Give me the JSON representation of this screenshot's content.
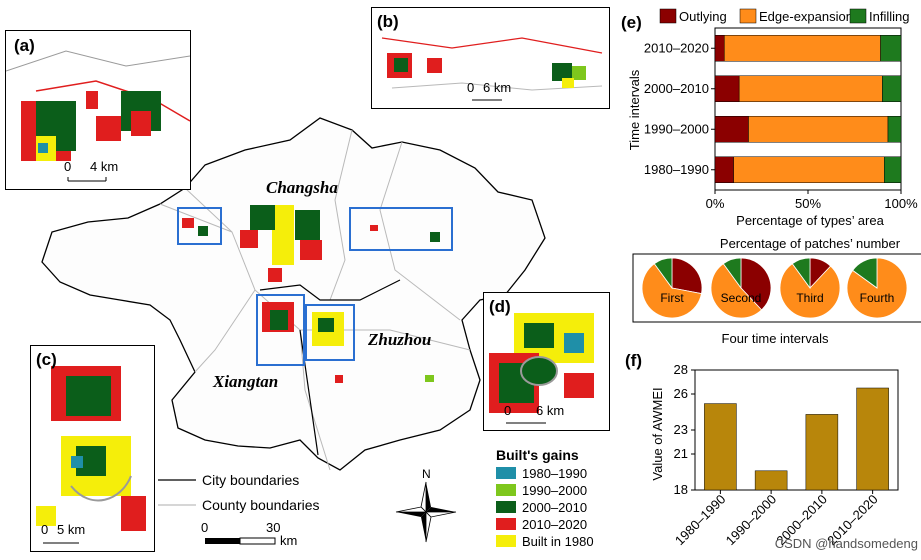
{
  "map": {
    "cities": [
      "Changsha",
      "Zhuzhou",
      "Xiangtan"
    ],
    "panels": [
      "(a)",
      "(b)",
      "(c)",
      "(d)"
    ],
    "scalebars": {
      "a": "4 km",
      "b": "6 km",
      "c": "5 km",
      "d": "6 km"
    },
    "scalebar_zero": "0",
    "main_scale": {
      "zero": "0",
      "max": "30",
      "unit": "km"
    },
    "north": "N",
    "boundaries": [
      {
        "label": "City boundaries",
        "color": "#000000"
      },
      {
        "label": "County boundaries",
        "color": "#bdbdbd"
      }
    ],
    "gains": {
      "title": "Built's gains",
      "items": [
        {
          "label": "1980–1990",
          "color": "#1f8fa8"
        },
        {
          "label": "1990–2000",
          "color": "#7ec71d"
        },
        {
          "label": "2000–2010",
          "color": "#0b5e1a"
        },
        {
          "label": "2010–2020",
          "color": "#e01e1e"
        },
        {
          "label": "Built in 1980",
          "color": "#f5ee0a"
        }
      ]
    }
  },
  "panel_e": {
    "letter": "(e)",
    "legend": [
      {
        "label": "Outlying",
        "color": "#8b0000"
      },
      {
        "label": "Edge-expansion",
        "color": "#ff8c1a"
      },
      {
        "label": "Infilling",
        "color": "#1e7a1e"
      }
    ],
    "ylabel": "Time intervals",
    "xlabel": "Percentage of types’ area",
    "xticks": [
      "0%",
      "50%",
      "100%"
    ],
    "pie_title": "Percentage of patches’ number",
    "pie_xlabel": "Four time intervals"
  },
  "panel_f": {
    "letter": "(f)",
    "ylabel": "Value of AWMEI",
    "yticks": [
      "28",
      "26",
      "23",
      "21",
      "18"
    ]
  },
  "watermark": "CSDN @handsomedeng",
  "chart_data": [
    {
      "type": "bar",
      "orientation": "horizontal-stacked",
      "categories": [
        "2010–2020",
        "2000–2010",
        "1990–2000",
        "1980–1990"
      ],
      "series": [
        {
          "name": "Outlying",
          "values": [
            5,
            13,
            18,
            10
          ]
        },
        {
          "name": "Edge-expansion",
          "values": [
            84,
            77,
            75,
            81
          ]
        },
        {
          "name": "Infilling",
          "values": [
            11,
            10,
            7,
            9
          ]
        }
      ],
      "xlabel": "Percentage of types’ area",
      "ylabel": "Time intervals",
      "xlim": [
        0,
        100
      ]
    },
    {
      "type": "pie",
      "title": "Percentage of patches’ number",
      "xlabel": "Four time intervals",
      "pies": [
        {
          "label": "First",
          "values": [
            {
              "name": "Outlying",
              "value": 28
            },
            {
              "name": "Edge-expansion",
              "value": 62
            },
            {
              "name": "Infilling",
              "value": 10
            }
          ]
        },
        {
          "label": "Second",
          "values": [
            {
              "name": "Outlying",
              "value": 38
            },
            {
              "name": "Edge-expansion",
              "value": 52
            },
            {
              "name": "Infilling",
              "value": 10
            }
          ]
        },
        {
          "label": "Third",
          "values": [
            {
              "name": "Outlying",
              "value": 12
            },
            {
              "name": "Edge-expansion",
              "value": 78
            },
            {
              "name": "Infilling",
              "value": 10
            }
          ]
        },
        {
          "label": "Fourth",
          "values": [
            {
              "name": "Outlying",
              "value": 0
            },
            {
              "name": "Edge-expansion",
              "value": 85
            },
            {
              "name": "Infilling",
              "value": 15
            }
          ]
        }
      ]
    },
    {
      "type": "bar",
      "categories": [
        "1980–1990",
        "1990–2000",
        "2000–2010",
        "2010–2020"
      ],
      "values": [
        25.2,
        19.6,
        24.3,
        26.5
      ],
      "ylabel": "Value of AWMEI",
      "ylim": [
        18,
        28
      ],
      "color": "#b8860b"
    }
  ]
}
